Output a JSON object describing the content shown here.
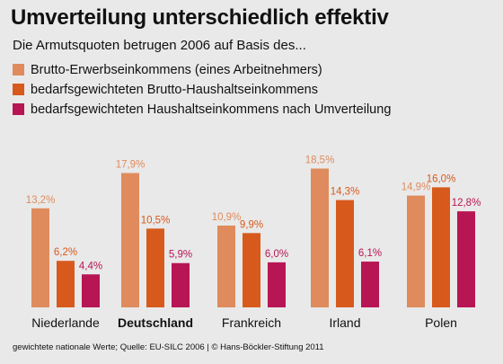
{
  "header": {
    "title": "Umverteilung unterschiedlich effektiv",
    "subtitle": "Die Armutsquoten betrugen 2006 auf Basis des..."
  },
  "legend": {
    "items": [
      {
        "label": "Brutto-Erwerbseinkommens (eines Arbeitnehmers)",
        "color": "#df8b5d"
      },
      {
        "label": "bedarfsgewichteten Brutto-Haushaltseinkommens",
        "color": "#d75a1c"
      },
      {
        "label": "bedarfsgewichteten Haushaltseinkommens nach Umverteilung",
        "color": "#b81554"
      }
    ]
  },
  "footer": {
    "note": "gewichtete nationale Werte; Quelle: EU-SILC 2006 | © Hans-Böckler-Stiftung 2011"
  },
  "chart_data": {
    "type": "bar",
    "categories": [
      "Niederlande",
      "Deutschland",
      "Frankreich",
      "Irland",
      "Polen"
    ],
    "highlight_category": "Deutschland",
    "series": [
      {
        "values": [
          13.2,
          17.9,
          10.9,
          18.5,
          14.9
        ],
        "labels": [
          "13,2%",
          "17,9%",
          "10,9%",
          "18,5%",
          "14,9%"
        ],
        "color": "#df8b5d",
        "label_color": "#df8b5d"
      },
      {
        "values": [
          6.2,
          10.5,
          9.9,
          14.3,
          16.0
        ],
        "labels": [
          "6,2%",
          "10,5%",
          "9,9%",
          "14,3%",
          "16,0%"
        ],
        "color": "#d75a1c",
        "label_color": "#d75a1c"
      },
      {
        "values": [
          4.4,
          5.9,
          6.0,
          6.1,
          12.8
        ],
        "labels": [
          "4,4%",
          "5,9%",
          "6,0%",
          "6,1%",
          "12,8%"
        ],
        "color": "#b81554",
        "label_color": "#b81554"
      }
    ],
    "unit": "%",
    "ylim": [
      0,
      19
    ],
    "grid": false,
    "legend_position": "top-left"
  }
}
